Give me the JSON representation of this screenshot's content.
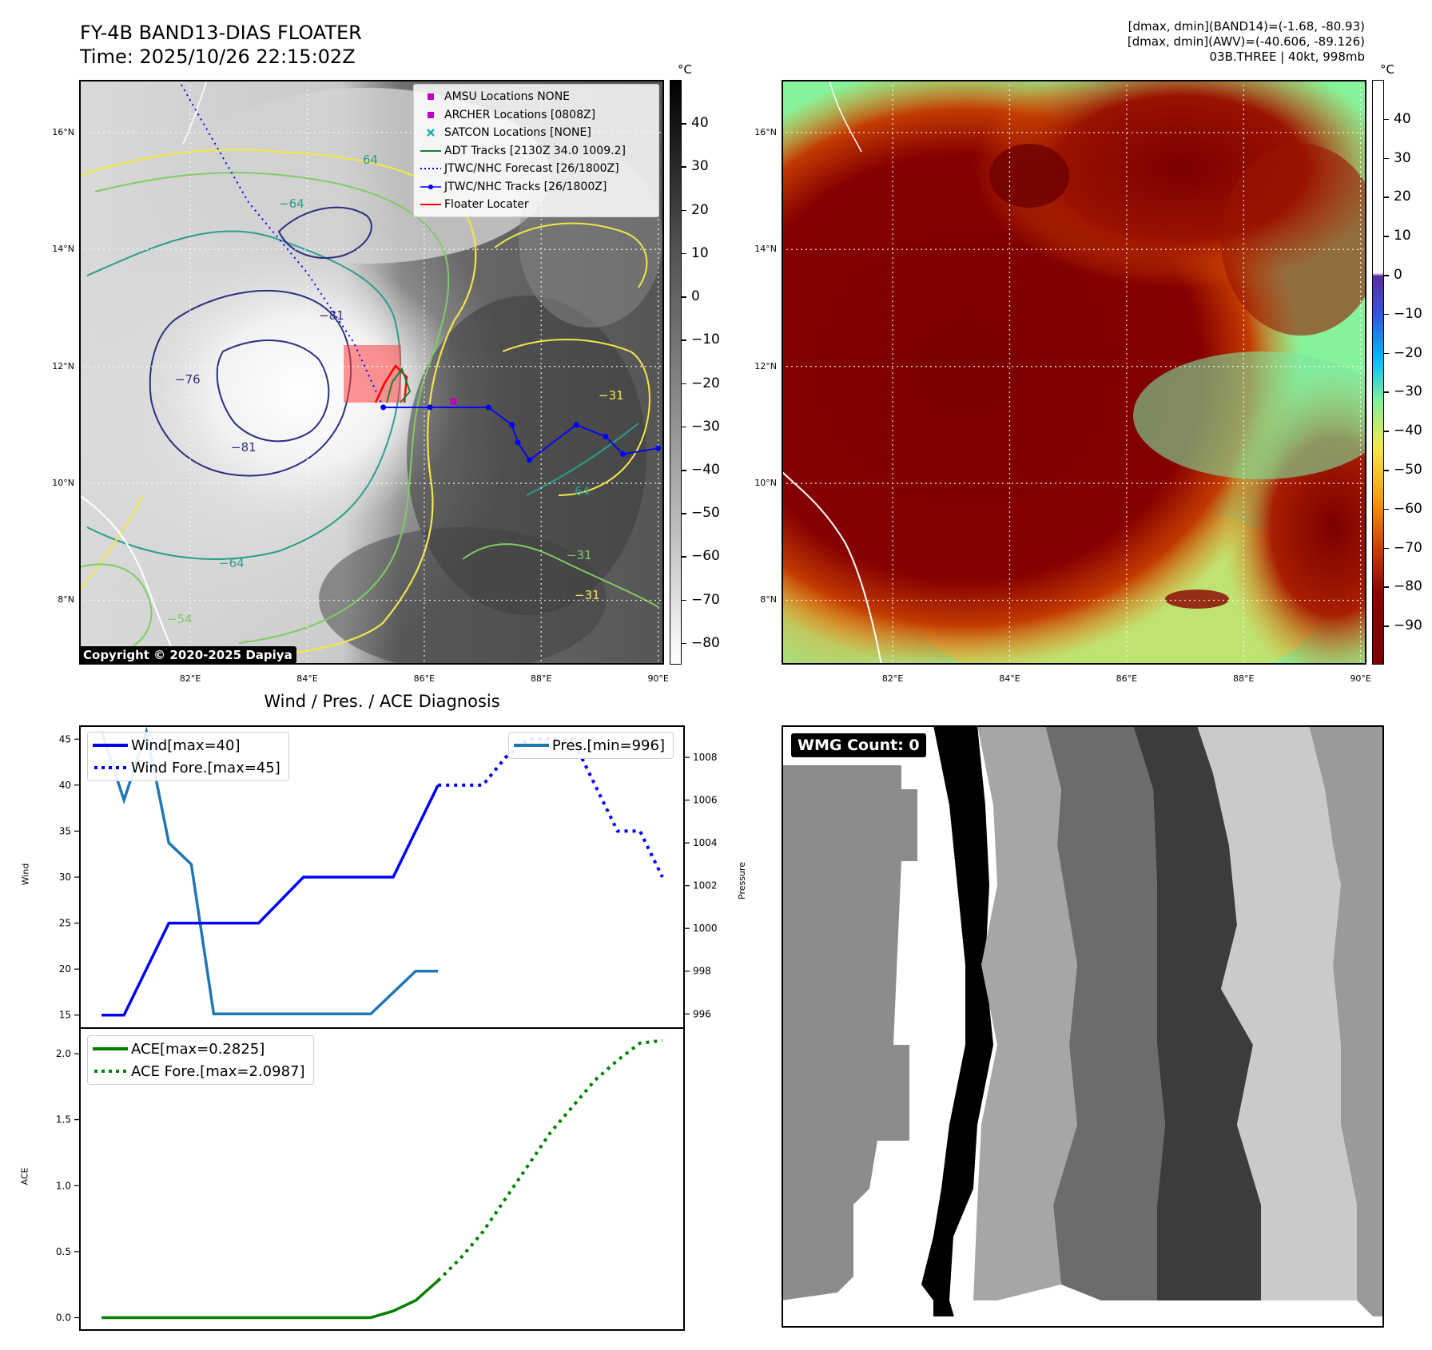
{
  "header": {
    "title_line1": "FY-4B BAND13-DIAS FLOATER",
    "title_line2": "Time: 2025/10/26 22:15:02Z",
    "stats_line1": "[dmax, dmin](BAND14)=(-1.68, -80.93)",
    "stats_line2": "[dmax, dmin](AWV)=(-40.606, -89.126)",
    "stats_line3": "03B.THREE | 40kt, 998mb"
  },
  "map_axes": {
    "lat_labels": [
      "16°N",
      "14°N",
      "12°N",
      "10°N",
      "8°N"
    ],
    "lon_labels": [
      "82°E",
      "84°E",
      "86°E",
      "88°E",
      "90°E"
    ],
    "lat_values": [
      16,
      14,
      12,
      10,
      8
    ],
    "lon_values": [
      82,
      84,
      86,
      88,
      90
    ],
    "lat_range": [
      6.9,
      16.9
    ],
    "lon_range": [
      80.1,
      90.1
    ]
  },
  "ir_panel": {
    "colorbar_unit": "°C",
    "colorbar_ticks": [
      "40",
      "30",
      "20",
      "10",
      "0",
      "−10",
      "−20",
      "−30",
      "−40",
      "−50",
      "−60",
      "−70",
      "−80"
    ],
    "colorbar_values": [
      40,
      30,
      20,
      10,
      0,
      -10,
      -20,
      -30,
      -40,
      -50,
      -60,
      -70,
      -80
    ],
    "colorbar_range": [
      -85,
      50
    ],
    "contour_labels": [
      "−81",
      "−81",
      "−76",
      "−64",
      "−64",
      "−54",
      "−31",
      "−31",
      "−31",
      "64",
      "64"
    ],
    "copyright": "Copyright © 2020-2025 Dapiya",
    "legend": [
      {
        "label": "AMSU Locations NONE",
        "symbol": "square",
        "color": "#c000c0"
      },
      {
        "label": "ARCHER Locations [0808Z]",
        "symbol": "square",
        "color": "#c000c0"
      },
      {
        "label": "SATCON Locations [NONE]",
        "symbol": "x",
        "color": "#20b2aa"
      },
      {
        "label": "ADT Tracks [2130Z 34.0 1009.2]",
        "symbol": "line",
        "color": "#1a7f37"
      },
      {
        "label": "JTWC/NHC Forecast [26/1800Z]",
        "symbol": "dotted",
        "color": "#0000ff"
      },
      {
        "label": "JTWC/NHC Tracks [26/1800Z]",
        "symbol": "line-dot",
        "color": "#0000ff"
      },
      {
        "label": "Floater Locater",
        "symbol": "line",
        "color": "#ff0000"
      }
    ],
    "jtwc_track": [
      [
        85.3,
        11.3
      ],
      [
        86.1,
        11.3
      ],
      [
        87.1,
        11.3
      ],
      [
        87.5,
        11.0
      ],
      [
        87.6,
        10.7
      ],
      [
        87.8,
        10.4
      ],
      [
        88.6,
        11.0
      ],
      [
        89.1,
        10.8
      ],
      [
        89.4,
        10.5
      ],
      [
        90.0,
        10.6
      ]
    ],
    "jtwc_forecast": [
      [
        81.8,
        16.9
      ],
      [
        83.0,
        14.8
      ],
      [
        84.0,
        13.6
      ],
      [
        84.8,
        12.4
      ],
      [
        85.3,
        11.3
      ]
    ],
    "archer_location": [
      86.5,
      11.4
    ]
  },
  "awv_panel": {
    "colorbar_unit": "°C",
    "colorbar_ticks": [
      "40",
      "30",
      "20",
      "10",
      "0",
      "−10",
      "−20",
      "−30",
      "−40",
      "−50",
      "−60",
      "−70",
      "−80",
      "−90"
    ],
    "colorbar_values": [
      40,
      30,
      20,
      10,
      0,
      -10,
      -20,
      -30,
      -40,
      -50,
      -60,
      -70,
      -80,
      -90
    ],
    "colorbar_range": [
      -100,
      50
    ]
  },
  "wind_panel": {
    "title": "Wind / Pres. / ACE Diagnosis",
    "left_ylabel": "Wind",
    "right_ylabel": "Pressure",
    "left_ticks": [
      "45",
      "40",
      "35",
      "30",
      "25",
      "20",
      "15"
    ],
    "right_ticks": [
      "1008",
      "1006",
      "1004",
      "1002",
      "1000",
      "998",
      "996"
    ],
    "legend_wind": [
      {
        "label": "Wind[max=40]",
        "style": "solid",
        "color": "#0000ff"
      },
      {
        "label": "Wind Fore.[max=45]",
        "style": "dotted",
        "color": "#0000ff"
      }
    ],
    "legend_pres": {
      "label": "Pres.[min=996]",
      "style": "solid",
      "color": "#1f77b4"
    }
  },
  "ace_panel": {
    "ylabel": "ACE",
    "ticks": [
      "2.0",
      "1.5",
      "1.0",
      "0.5",
      "0.0"
    ],
    "legend": [
      {
        "label": "ACE[max=0.2825]",
        "style": "solid",
        "color": "#008000"
      },
      {
        "label": "ACE Fore.[max=2.0987]",
        "style": "dotted",
        "color": "#008000"
      }
    ]
  },
  "wmg_panel": {
    "badge": "WMG Count: 0"
  },
  "chart_data": [
    {
      "type": "line",
      "title": "Wind / Pres. / ACE Diagnosis",
      "ylabel": "Wind",
      "ylim": [
        13.5,
        46.5
      ],
      "xlim": [
        -1,
        26
      ],
      "series": [
        {
          "name": "Wind[max=40]",
          "x": [
            0,
            1,
            3,
            7,
            9,
            12,
            13,
            15
          ],
          "values": [
            15,
            15,
            25,
            25,
            30,
            30,
            30,
            40
          ]
        },
        {
          "name": "Wind Fore.[max=45]",
          "x": [
            15,
            16,
            17,
            18,
            19,
            20,
            21,
            22,
            23,
            24,
            25
          ],
          "values": [
            40,
            40,
            40,
            43,
            45,
            45,
            45,
            40,
            35,
            35,
            30
          ]
        }
      ]
    },
    {
      "type": "line",
      "ylabel": "Pressure",
      "ylim": [
        995.3,
        1009.5
      ],
      "xlim": [
        -1,
        26
      ],
      "series": [
        {
          "name": "Pres.[min=996]",
          "x": [
            0,
            1,
            2,
            3,
            4,
            5,
            6,
            7,
            8,
            9,
            10,
            11,
            12,
            13,
            14,
            15
          ],
          "values": [
            1009.2,
            1006.0,
            1009.2,
            1004.0,
            1003.0,
            996.0,
            996.0,
            996.0,
            996.0,
            996.0,
            996.0,
            996.0,
            996.0,
            997.0,
            998.0,
            998.0
          ]
        }
      ]
    },
    {
      "type": "line",
      "ylabel": "ACE",
      "ylim": [
        -0.1,
        2.2
      ],
      "xlim": [
        -1,
        26
      ],
      "series": [
        {
          "name": "ACE[max=0.2825]",
          "x": [
            0,
            1,
            2,
            3,
            4,
            5,
            6,
            7,
            8,
            9,
            10,
            11,
            12,
            13,
            14,
            15
          ],
          "values": [
            0,
            0,
            0,
            0,
            0,
            0,
            0,
            0,
            0,
            0,
            0,
            0,
            0,
            0.05,
            0.13,
            0.28
          ]
        },
        {
          "name": "ACE Fore.[max=2.0987]",
          "x": [
            15,
            16,
            17,
            18,
            19,
            20,
            21,
            22,
            23,
            24,
            25
          ],
          "values": [
            0.28,
            0.45,
            0.65,
            0.9,
            1.15,
            1.4,
            1.6,
            1.8,
            1.95,
            2.08,
            2.1
          ]
        }
      ]
    }
  ]
}
